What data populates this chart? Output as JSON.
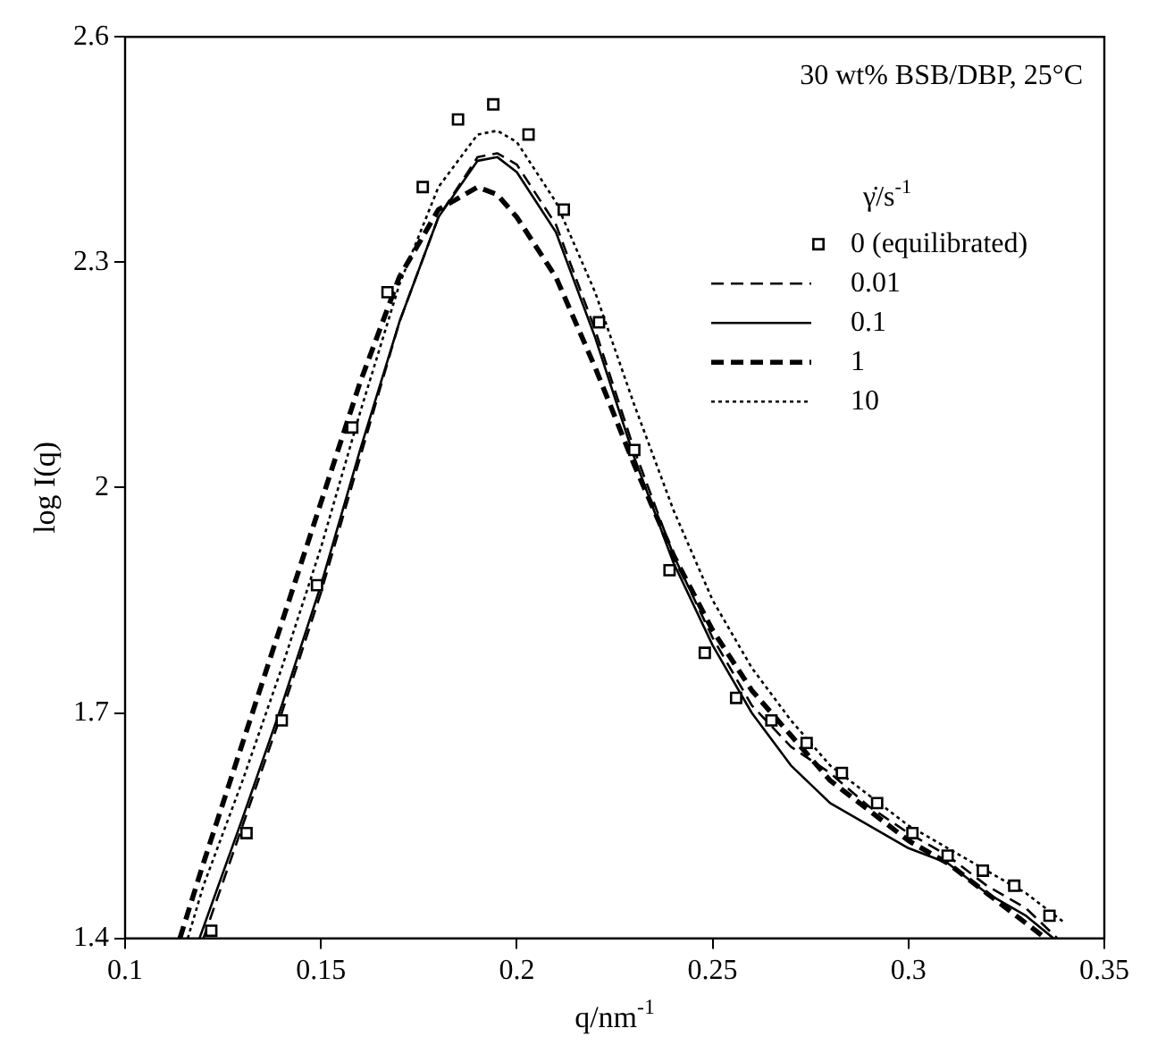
{
  "chart_data": {
    "type": "line",
    "xlabel": "q/nm$^{-1}$",
    "ylabel": "log I(q)",
    "legend_title": "γ̇/s$^{-1}$",
    "annotations": [
      "30 wt% BSB/DBP, 25°C"
    ],
    "xlim": [
      0.1,
      0.35
    ],
    "xticks": [
      0.1,
      0.15,
      0.2,
      0.25,
      0.3,
      0.35
    ],
    "ylim": [
      1.4,
      2.6
    ],
    "yticks": [
      1.4,
      1.7,
      2,
      2.3,
      2.6
    ],
    "grid": false,
    "legend": "top right",
    "series": [
      {
        "name": "0 (equilibrated)",
        "type": "scatter",
        "marker": "square",
        "color": "#000000",
        "x": [
          0.122,
          0.131,
          0.14,
          0.149,
          0.158,
          0.167,
          0.176,
          0.185,
          0.194,
          0.203,
          0.212,
          0.221,
          0.23,
          0.239,
          0.248,
          0.256,
          0.265,
          0.274,
          0.283,
          0.292,
          0.301,
          0.31,
          0.319,
          0.327,
          0.336
        ],
        "values": [
          1.41,
          1.54,
          1.69,
          1.87,
          2.08,
          2.26,
          2.4,
          2.49,
          2.51,
          2.47,
          2.37,
          2.22,
          2.05,
          1.89,
          1.78,
          1.72,
          1.69,
          1.66,
          1.62,
          1.58,
          1.54,
          1.51,
          1.49,
          1.47,
          1.43
        ]
      },
      {
        "name": "0.01",
        "line_style": "dashed",
        "color": "#000000",
        "x": [
          0.12,
          0.13,
          0.14,
          0.15,
          0.16,
          0.17,
          0.18,
          0.19,
          0.195,
          0.2,
          0.21,
          0.22,
          0.23,
          0.24,
          0.25,
          0.26,
          0.27,
          0.28,
          0.29,
          0.3,
          0.31,
          0.32,
          0.33,
          0.338
        ],
        "values": [
          1.4,
          1.55,
          1.7,
          1.86,
          2.04,
          2.22,
          2.36,
          2.44,
          2.445,
          2.43,
          2.35,
          2.21,
          2.05,
          1.91,
          1.8,
          1.71,
          1.655,
          1.62,
          1.575,
          1.54,
          1.51,
          1.47,
          1.44,
          1.4
        ]
      },
      {
        "name": "0.1",
        "line_style": "solid",
        "color": "#000000",
        "x": [
          0.119,
          0.13,
          0.14,
          0.15,
          0.16,
          0.17,
          0.18,
          0.19,
          0.195,
          0.2,
          0.21,
          0.22,
          0.23,
          0.24,
          0.25,
          0.26,
          0.27,
          0.28,
          0.29,
          0.3,
          0.31,
          0.32,
          0.33,
          0.337
        ],
        "values": [
          1.4,
          1.56,
          1.71,
          1.87,
          2.05,
          2.22,
          2.36,
          2.435,
          2.44,
          2.42,
          2.34,
          2.2,
          2.04,
          1.9,
          1.79,
          1.7,
          1.63,
          1.58,
          1.55,
          1.52,
          1.5,
          1.46,
          1.43,
          1.4
        ]
      },
      {
        "name": "1",
        "line_style": "dashed",
        "color": "#000000",
        "x": [
          0.114,
          0.12,
          0.13,
          0.14,
          0.15,
          0.16,
          0.17,
          0.18,
          0.19,
          0.195,
          0.2,
          0.21,
          0.22,
          0.23,
          0.24,
          0.25,
          0.26,
          0.27,
          0.28,
          0.29,
          0.3,
          0.31,
          0.32,
          0.33,
          0.335
        ],
        "values": [
          1.4,
          1.5,
          1.66,
          1.82,
          1.98,
          2.14,
          2.28,
          2.37,
          2.4,
          2.39,
          2.36,
          2.28,
          2.16,
          2.03,
          1.91,
          1.81,
          1.73,
          1.67,
          1.61,
          1.57,
          1.53,
          1.5,
          1.46,
          1.42,
          1.4
        ]
      },
      {
        "name": "10",
        "line_style": "dotted",
        "color": "#000000",
        "x": [
          0.116,
          0.12,
          0.13,
          0.14,
          0.15,
          0.16,
          0.17,
          0.18,
          0.19,
          0.195,
          0.2,
          0.21,
          0.22,
          0.23,
          0.24,
          0.25,
          0.26,
          0.27,
          0.28,
          0.29,
          0.3,
          0.31,
          0.32,
          0.33,
          0.34
        ],
        "values": [
          1.4,
          1.47,
          1.61,
          1.76,
          1.92,
          2.1,
          2.27,
          2.4,
          2.47,
          2.475,
          2.46,
          2.38,
          2.26,
          2.11,
          1.97,
          1.85,
          1.76,
          1.69,
          1.63,
          1.59,
          1.55,
          1.52,
          1.49,
          1.46,
          1.42
        ]
      }
    ]
  }
}
